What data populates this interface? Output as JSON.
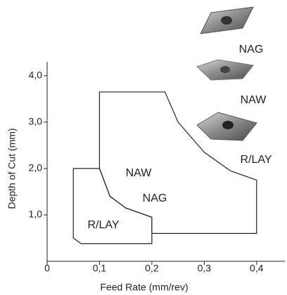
{
  "chart_data": {
    "type": "region",
    "xlabel": "Feed Rate (mm/rev)",
    "ylabel": "Depth of Cut (mm)",
    "xlim": [
      0,
      0.45
    ],
    "ylim": [
      0,
      4.3
    ],
    "xticks": [
      0,
      {
        "value": 0.1,
        "label": "0,1"
      },
      {
        "value": 0.2,
        "label": "0,2"
      },
      {
        "value": 0.3,
        "label": "0,3"
      },
      {
        "value": 0.4,
        "label": "0,4"
      }
    ],
    "yticks": [
      {
        "value": 1,
        "label": "1,0"
      },
      {
        "value": 2,
        "label": "2,0"
      },
      {
        "value": 3,
        "label": "3,0"
      },
      {
        "value": 4,
        "label": "4,0"
      }
    ],
    "color": "#222222",
    "regions": [
      {
        "labels": [
          "NAW",
          "NAG"
        ],
        "points": [
          [
            0.1,
            3.65
          ],
          [
            0.225,
            3.65
          ],
          [
            0.25,
            3.0
          ],
          [
            0.3,
            2.35
          ],
          [
            0.35,
            1.95
          ],
          [
            0.4,
            1.75
          ],
          [
            0.4,
            0.6
          ],
          [
            0.2,
            0.6
          ],
          [
            0.2,
            0.95
          ],
          [
            0.15,
            1.15
          ],
          [
            0.12,
            1.4
          ],
          [
            0.1,
            2.0
          ]
        ]
      },
      {
        "labels": [
          "R/LAY"
        ],
        "points": [
          [
            0.05,
            2.0
          ],
          [
            0.1,
            2.0
          ],
          [
            0.12,
            1.4
          ],
          [
            0.15,
            1.15
          ],
          [
            0.2,
            0.95
          ],
          [
            0.2,
            0.38
          ],
          [
            0.065,
            0.38
          ],
          [
            0.05,
            0.5
          ]
        ]
      }
    ],
    "inserts": [
      "NAG",
      "NAW",
      "R/LAY"
    ]
  }
}
